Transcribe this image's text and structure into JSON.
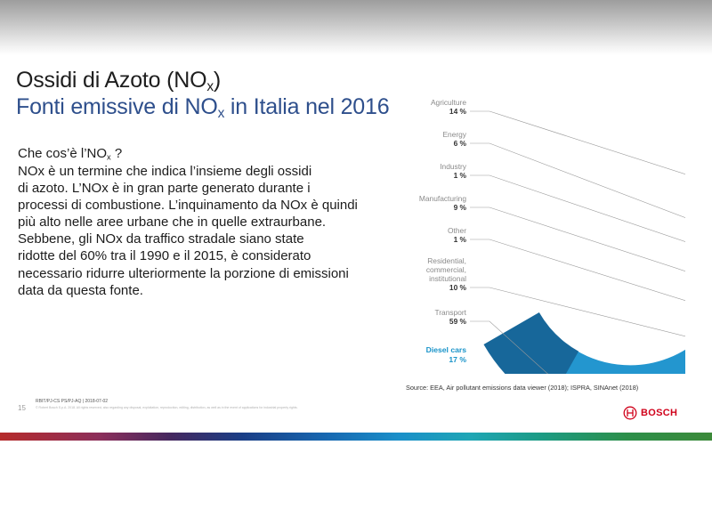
{
  "slide": {
    "title_main": "Ossidi di Azoto (NO",
    "title_sub": "x",
    "title_end": ")",
    "subtitle_pre": "Fonti emissive di NO",
    "subtitle_sub": "x",
    "subtitle_post": " in Italia nel 2016",
    "question_pre": "Che cos’è l’NO",
    "question_sub": "x",
    "question_post": " ?",
    "body": "NOx è un termine che indica l’insieme degli ossidi\ndi azoto. L’NOx è in gran parte generato durante i\nprocessi di combustione. L’inquinamento da NOx è quindi\npiù alto nelle aree urbane che in quelle extraurbane.\nSebbene, gli NOx da traffico stradale siano state\nridotte del 60% tra il 1990 e il 2015, è considerato\nnecessario ridurre ulteriormente la porzione di emissioni\ndata da questa fonte.",
    "source": "Source: EEA, Air pollutant emissions data viewer (2018); ISPRA, SINAnet (2018)"
  },
  "footer": {
    "page": "15",
    "code": "RBIT/PJ-CS PS/PJ-AQ | 2018-07-02",
    "legal": "© Robert Bosch S.p.A. 2018. All rights reserved, also regarding any disposal, exploitation, reproduction, editing, distribution, as well as in the event of applications for industrial property rights.",
    "brand": "BOSCH",
    "brand_color": "#d0021b"
  },
  "chart_data": {
    "type": "pie",
    "variant": "donut",
    "title": "",
    "unit": "%",
    "categories": [
      "Agriculture",
      "Energy",
      "Industry",
      "Manufacturing",
      "Other",
      "Residential, commercial, institutional",
      "Transport"
    ],
    "values": [
      14,
      6,
      1,
      9,
      1,
      10,
      59
    ],
    "labels": [
      {
        "name": "Agriculture",
        "lines": [
          "Agriculture"
        ],
        "value": "14 %"
      },
      {
        "name": "Energy",
        "lines": [
          "Energy"
        ],
        "value": "6 %"
      },
      {
        "name": "Industry",
        "lines": [
          "Industry"
        ],
        "value": "1 %"
      },
      {
        "name": "Manufacturing",
        "lines": [
          "Manufacturing"
        ],
        "value": "9 %"
      },
      {
        "name": "Other",
        "lines": [
          "Other"
        ],
        "value": "1 %"
      },
      {
        "name": "Residential, commercial, institutional",
        "lines": [
          "Residential,",
          "commercial,",
          "institutional"
        ],
        "value": "10 %"
      },
      {
        "name": "Transport",
        "lines": [
          "Transport"
        ],
        "value": "59 %"
      }
    ],
    "highlight": {
      "name": "Diesel cars",
      "value": 17,
      "value_label": "17 %",
      "parent": "Transport",
      "color": "#1893c9"
    },
    "colors": [
      "#dcdcdc",
      "#7b8f9a",
      "#a2b1b8",
      "#a6d4e9",
      "#cfd6da",
      "#5ab5de",
      "#2396cf"
    ],
    "highlight_fill": "#17679a",
    "icons": [
      "cloud-icon",
      "power-plant-icon",
      "factory-icon",
      "gear-icon",
      "other-icon",
      "house-icon",
      "truck-car-icon"
    ]
  }
}
